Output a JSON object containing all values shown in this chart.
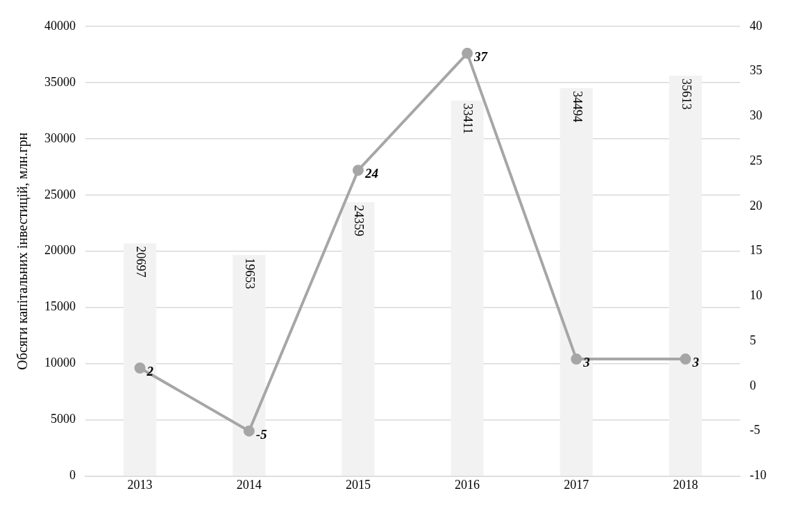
{
  "chart_data": {
    "type": "bar",
    "ylabel": "Обсяги капітальних інвестицій, млн.грн",
    "categories": [
      "2013",
      "2014",
      "2015",
      "2016",
      "2017",
      "2018"
    ],
    "series": [
      {
        "color": "#f2f2f2",
        "values": [
          20697,
          19653,
          24359,
          33411,
          34494,
          35613
        ]
      },
      {
        "type": "line",
        "axis": "y2",
        "color": "#a6a6a6",
        "marker": "circle",
        "values": [
          2,
          -5,
          24,
          37,
          3,
          3
        ]
      }
    ],
    "ylim": [
      0,
      40000
    ],
    "yticks": [
      0,
      5000,
      10000,
      15000,
      20000,
      25000,
      30000,
      35000,
      40000
    ],
    "y2lim": [
      -10,
      40
    ],
    "y2ticks": [
      -10,
      -5,
      0,
      5,
      10,
      15,
      20,
      25,
      30,
      35,
      40
    ],
    "grid": "y",
    "data_labels": true,
    "legend": false
  }
}
